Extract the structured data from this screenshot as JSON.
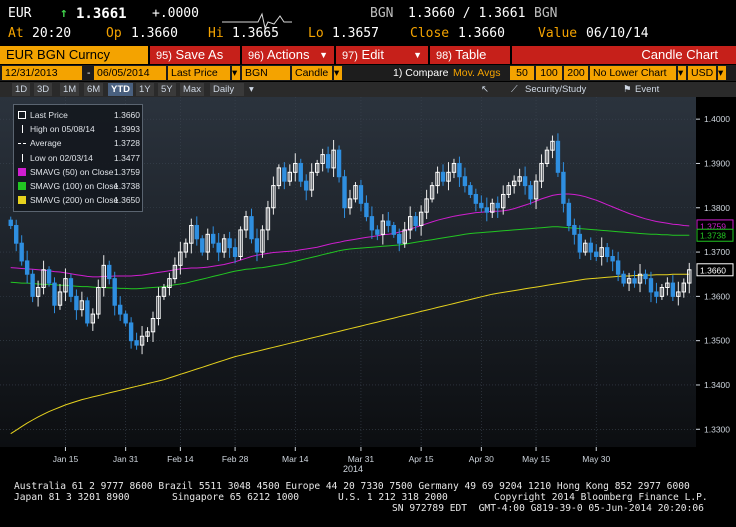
{
  "quote": {
    "currency": "EUR",
    "arrow": "↑",
    "last": "1.3661",
    "change": "+.0000",
    "bid_ccy": "BGN",
    "bid_ask": "1.3660 / 1.3661",
    "ask_ccy": "BGN",
    "at_label": "At",
    "time": "20:20",
    "op_label": "Op",
    "open": "1.3660",
    "hi_label": "Hi",
    "high": "1.3665",
    "lo_label": "Lo",
    "low": "1.3657",
    "close_label": "Close",
    "close": "1.3660",
    "value_label": "Value",
    "value_date": "06/10/14"
  },
  "toolbar": {
    "security": "EUR BGN Curncy",
    "save_num": "95)",
    "save_label": "Save As",
    "actions_num": "96)",
    "actions_label": "Actions",
    "edit_num": "97)",
    "edit_label": "Edit",
    "table_num": "98)",
    "table_label": "Table",
    "chart_title": "Candle Chart"
  },
  "controls": {
    "start_date": "12/31/2013",
    "dash": "-",
    "end_date": "06/05/2014",
    "field": "Last Price",
    "ccy": "BGN",
    "style": "Candle",
    "compare": "1) Compare",
    "mavgs": "Mov. Avgs",
    "ma1": "50",
    "ma2": "100",
    "ma3": "200",
    "lower_chart": "No Lower Chart",
    "currency": "USD"
  },
  "tabs": {
    "ranges": [
      "1D",
      "3D",
      "1M",
      "6M",
      "YTD",
      "1Y",
      "5Y",
      "Max"
    ],
    "active": "YTD",
    "period": "Daily",
    "security_study": "Security/Study",
    "event": "Event"
  },
  "legend": [
    {
      "label": "Last Price",
      "value": "1.3660",
      "color": "#ffffff",
      "kind": "box"
    },
    {
      "label": "High on 05/08/14",
      "value": "1.3993",
      "color": "#ffffff",
      "kind": "tick"
    },
    {
      "label": "Average",
      "value": "1.3728",
      "color": "#ffffff",
      "kind": "dash"
    },
    {
      "label": "Low on 02/03/14",
      "value": "1.3477",
      "color": "#ffffff",
      "kind": "tick"
    },
    {
      "label": "SMAVG (50) on Close",
      "value": "1.3759",
      "color": "#d01ed0",
      "kind": "box"
    },
    {
      "label": "SMAVG (100) on Close",
      "value": "1.3738",
      "color": "#22c622",
      "kind": "box"
    },
    {
      "label": "SMAVG (200) on Close",
      "value": "1.3650",
      "color": "#e6d21e",
      "kind": "box"
    }
  ],
  "chart_data": {
    "type": "candlestick",
    "year_label": "2014",
    "ylim": [
      1.326,
      1.405
    ],
    "y_ticks": [
      "1.4000",
      "1.3900",
      "1.3800",
      "1.3700",
      "1.3600",
      "1.3500",
      "1.3400",
      "1.3300"
    ],
    "x_ticks": [
      "Jan 15",
      "Jan 31",
      "Feb 14",
      "Feb 28",
      "Mar 14",
      "Mar 31",
      "Apr 15",
      "Apr 30",
      "May 15",
      "May 30"
    ],
    "badges": {
      "last": {
        "value": "1.3660",
        "color": "#ffffff"
      },
      "ma50": {
        "value": "1.3759",
        "color": "#d01ed0"
      },
      "ma100": {
        "value": "1.3738",
        "color": "#22c622"
      },
      "ma200": {
        "value": "1.3650",
        "color": "#e6d21e"
      }
    },
    "up_color": "#ffffff",
    "down_color": "#2f8fe0",
    "close": [
      1.376,
      1.372,
      1.368,
      1.365,
      1.36,
      1.362,
      1.366,
      1.363,
      1.358,
      1.361,
      1.364,
      1.36,
      1.357,
      1.359,
      1.354,
      1.356,
      1.362,
      1.367,
      1.364,
      1.358,
      1.356,
      1.354,
      1.35,
      1.349,
      1.351,
      1.352,
      1.355,
      1.36,
      1.362,
      1.364,
      1.367,
      1.37,
      1.372,
      1.376,
      1.373,
      1.37,
      1.374,
      1.372,
      1.37,
      1.373,
      1.371,
      1.369,
      1.375,
      1.378,
      1.373,
      1.37,
      1.375,
      1.38,
      1.385,
      1.389,
      1.386,
      1.388,
      1.39,
      1.386,
      1.384,
      1.388,
      1.39,
      1.392,
      1.389,
      1.393,
      1.387,
      1.38,
      1.382,
      1.385,
      1.381,
      1.378,
      1.375,
      1.374,
      1.377,
      1.376,
      1.374,
      1.372,
      1.375,
      1.378,
      1.376,
      1.379,
      1.382,
      1.385,
      1.388,
      1.386,
      1.388,
      1.39,
      1.387,
      1.385,
      1.383,
      1.381,
      1.38,
      1.379,
      1.381,
      1.38,
      1.383,
      1.385,
      1.386,
      1.387,
      1.385,
      1.382,
      1.386,
      1.39,
      1.393,
      1.395,
      1.388,
      1.381,
      1.376,
      1.374,
      1.37,
      1.372,
      1.37,
      1.369,
      1.371,
      1.369,
      1.368,
      1.365,
      1.363,
      1.364,
      1.363,
      1.365,
      1.364,
      1.361,
      1.36,
      1.362,
      1.363,
      1.36,
      1.361,
      1.363,
      1.366
    ],
    "ma50_close": [
      1.3665,
      1.3664,
      1.3663,
      1.3662,
      1.3661,
      1.366,
      1.3659,
      1.3658,
      1.3656,
      1.3655,
      1.3653,
      1.3651,
      1.3649,
      1.3647,
      1.3645,
      1.3644,
      1.3644,
      1.3645,
      1.3645,
      1.3646,
      1.3646,
      1.3646,
      1.3646,
      1.3647,
      1.3648,
      1.365,
      1.3652,
      1.3654,
      1.3656,
      1.3658,
      1.366,
      1.3662,
      1.3663,
      1.3664,
      1.3664,
      1.3665,
      1.3666,
      1.3668,
      1.367,
      1.3672,
      1.3675,
      1.3678,
      1.3682,
      1.3686,
      1.369,
      1.3693,
      1.3695,
      1.3697,
      1.3699,
      1.37,
      1.3701,
      1.3702,
      1.3703,
      1.3705,
      1.3707,
      1.3709,
      1.3711,
      1.3714,
      1.3717,
      1.372,
      1.3722,
      1.3725,
      1.3727,
      1.3729,
      1.3731,
      1.3733,
      1.3735,
      1.3737,
      1.3739,
      1.374,
      1.3742,
      1.3745,
      1.3748,
      1.3752,
      1.3756,
      1.376,
      1.3764,
      1.3768,
      1.3772,
      1.3775,
      1.3778,
      1.3781,
      1.3783,
      1.3785,
      1.3787,
      1.3789,
      1.379,
      1.3791,
      1.3792,
      1.3792,
      1.3793,
      1.3795,
      1.3798,
      1.3802,
      1.3806,
      1.381,
      1.3815,
      1.382,
      1.3824,
      1.3828,
      1.383,
      1.3831,
      1.3831,
      1.383,
      1.3828,
      1.3825,
      1.3821,
      1.3817,
      1.3812,
      1.3807,
      1.3802,
      1.3797,
      1.3792,
      1.3787,
      1.3783,
      1.3779,
      1.3775,
      1.3772,
      1.3769,
      1.3767,
      1.3765,
      1.3763,
      1.3762,
      1.376,
      1.3759
    ],
    "ma100_close": [
      1.3632,
      1.3631,
      1.363,
      1.363,
      1.3629,
      1.3628,
      1.3627,
      1.3627,
      1.3626,
      1.3625,
      1.3625,
      1.3624,
      1.3623,
      1.3622,
      1.3622,
      1.3621,
      1.362,
      1.362,
      1.3619,
      1.3619,
      1.3618,
      1.3618,
      1.3617,
      1.3617,
      1.3618,
      1.3619,
      1.362,
      1.3621,
      1.3622,
      1.3624,
      1.3626,
      1.3628,
      1.363,
      1.3633,
      1.3636,
      1.3639,
      1.3642,
      1.3645,
      1.3648,
      1.3651,
      1.3654,
      1.3657,
      1.3659,
      1.3661,
      1.3662,
      1.3664,
      1.3665,
      1.3667,
      1.3669,
      1.3671,
      1.3673,
      1.3676,
      1.3679,
      1.3682,
      1.3685,
      1.3688,
      1.3691,
      1.3694,
      1.3697,
      1.37,
      1.3703,
      1.3705,
      1.3707,
      1.3708,
      1.3709,
      1.371,
      1.3711,
      1.3712,
      1.3713,
      1.3714,
      1.3715,
      1.3716,
      1.3718,
      1.372,
      1.3722,
      1.3724,
      1.3726,
      1.3728,
      1.373,
      1.3732,
      1.3734,
      1.3736,
      1.3738,
      1.374,
      1.3742,
      1.3743,
      1.3744,
      1.3745,
      1.3746,
      1.3747,
      1.3748,
      1.3749,
      1.375,
      1.3751,
      1.3752,
      1.3753,
      1.3754,
      1.3755,
      1.3756,
      1.3757,
      1.3757,
      1.3756,
      1.3755,
      1.3754,
      1.3753,
      1.3752,
      1.3751,
      1.375,
      1.3749,
      1.3748,
      1.3747,
      1.3746,
      1.3745,
      1.3744,
      1.3743,
      1.3742,
      1.3741,
      1.374,
      1.374,
      1.3739,
      1.3739,
      1.3738,
      1.3738,
      1.3738,
      1.3738
    ],
    "ma200_close": [
      1.329,
      1.3298,
      1.3306,
      1.3314,
      1.3321,
      1.3328,
      1.3334,
      1.334,
      1.3345,
      1.335,
      1.3355,
      1.3359,
      1.3363,
      1.3367,
      1.337,
      1.3373,
      1.3376,
      1.3379,
      1.3382,
      1.3385,
      1.3388,
      1.3391,
      1.3394,
      1.3397,
      1.34,
      1.3403,
      1.3406,
      1.3409,
      1.3412,
      1.3416,
      1.342,
      1.3424,
      1.3428,
      1.3432,
      1.3436,
      1.344,
      1.3444,
      1.3448,
      1.3452,
      1.3456,
      1.346,
      1.3464,
      1.3467,
      1.347,
      1.3473,
      1.3476,
      1.3479,
      1.3482,
      1.3485,
      1.3488,
      1.3491,
      1.3494,
      1.3497,
      1.35,
      1.3503,
      1.3506,
      1.3509,
      1.3512,
      1.3515,
      1.3518,
      1.3521,
      1.3524,
      1.3527,
      1.353,
      1.3533,
      1.3536,
      1.3539,
      1.3542,
      1.3545,
      1.3548,
      1.3551,
      1.3554,
      1.3557,
      1.356,
      1.3563,
      1.3566,
      1.3569,
      1.3572,
      1.3575,
      1.3578,
      1.3581,
      1.3584,
      1.3587,
      1.359,
      1.3593,
      1.3596,
      1.3599,
      1.3602,
      1.3605,
      1.3607,
      1.3609,
      1.3611,
      1.3613,
      1.3615,
      1.3617,
      1.3619,
      1.3621,
      1.3623,
      1.3625,
      1.3627,
      1.3629,
      1.3631,
      1.3633,
      1.3635,
      1.3637,
      1.3639,
      1.364,
      1.3641,
      1.3642,
      1.3643,
      1.3644,
      1.3645,
      1.3646,
      1.3646,
      1.3647,
      1.3647,
      1.3648,
      1.3648,
      1.3649,
      1.3649,
      1.3649,
      1.365,
      1.365,
      1.365,
      1.365
    ]
  },
  "footer": {
    "line1": "Australia 61 2 9777 8600 Brazil 5511 3048 4500 Europe 44 20 7330 7500 Germany 49 69 9204 1210 Hong Kong 852 2977 6000",
    "line2a": "Japan 81 3 3201 8900",
    "line2b": "Singapore 65 6212 1000",
    "line2c": "U.S. 1 212 318 2000",
    "line2d": "Copyright 2014 Bloomberg Finance L.P.",
    "line3": "SN 972789 EDT  GMT-4:00 G819-39-0 05-Jun-2014 20:20:06"
  }
}
